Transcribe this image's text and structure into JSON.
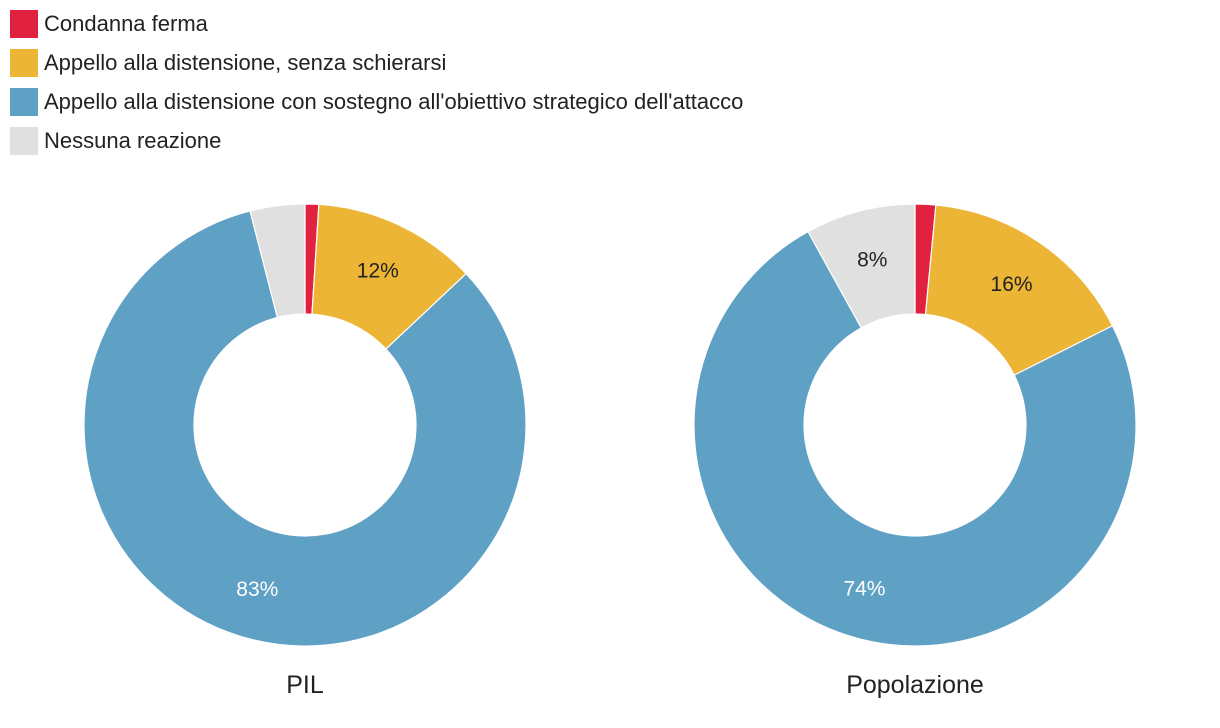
{
  "legend": [
    {
      "label": "Condanna ferma",
      "color": "#e0213f"
    },
    {
      "label": "Appello alla distensione, senza schierarsi",
      "color": "#ecb535"
    },
    {
      "label": "Appello alla distensione con sostegno all'obiettivo strategico dell'attacco",
      "color": "#5fa1c5"
    },
    {
      "label": "Nessuna reazione",
      "color": "#e0e0e0"
    }
  ],
  "chart_data": [
    {
      "type": "pie",
      "title": "PIL",
      "categories": [
        "Condanna ferma",
        "Appello alla distensione, senza schierarsi",
        "Appello alla distensione con sostegno all'obiettivo strategico dell'attacco",
        "Nessuna reazione"
      ],
      "values": [
        1,
        12,
        83,
        4
      ],
      "labels": [
        "",
        "12%",
        "83%",
        ""
      ],
      "colors": [
        "#e0213f",
        "#ecb535",
        "#5fa1c5",
        "#e0e0e0"
      ],
      "donut": true
    },
    {
      "type": "pie",
      "title": "Popolazione",
      "categories": [
        "Condanna ferma",
        "Appello alla distensione, senza schierarsi",
        "Appello alla distensione con sostegno all'obiettivo strategico dell'attacco",
        "Nessuna reazione"
      ],
      "values": [
        1.5,
        16,
        74,
        8
      ],
      "labels": [
        "",
        "16%",
        "74%",
        "8%"
      ],
      "colors": [
        "#e0213f",
        "#ecb535",
        "#5fa1c5",
        "#e0e0e0"
      ],
      "donut": true
    }
  ]
}
